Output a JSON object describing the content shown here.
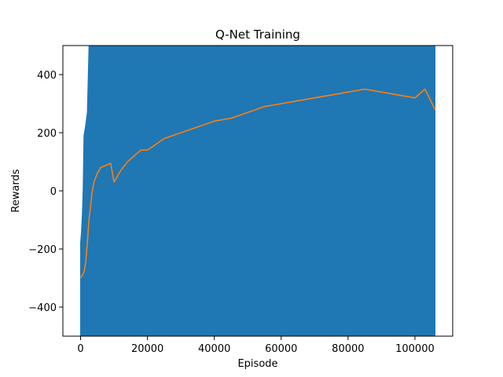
{
  "chart_data": {
    "type": "line",
    "title": "Q-Net Training",
    "xlabel": "Episode",
    "ylabel": "Rewards",
    "xlim": [
      -5300,
      111300
    ],
    "ylim": [
      -500,
      500
    ],
    "x_ticks": [
      0,
      20000,
      40000,
      60000,
      80000,
      100000
    ],
    "x_tick_labels": [
      "0",
      "20000",
      "40000",
      "60000",
      "80000",
      "100000"
    ],
    "y_ticks": [
      -400,
      -200,
      0,
      200,
      400
    ],
    "y_tick_labels": [
      "−400",
      "−200",
      "0",
      "200",
      "400"
    ],
    "grid": false,
    "legend": "none",
    "colors": {
      "raw": "#1f77b4",
      "smoothed": "#ff7f0e"
    },
    "series": [
      {
        "role": "raw",
        "x": [
          0,
          250,
          500,
          750,
          1000,
          1500,
          2000,
          2500,
          3000,
          5000,
          20000,
          40000,
          60000,
          80000,
          100000,
          106000
        ],
        "upper": [
          -180,
          -140,
          -80,
          0,
          190,
          225,
          270,
          500,
          500,
          500,
          500,
          500,
          500,
          500,
          500,
          500
        ],
        "lower": [
          -500,
          -500,
          -500,
          -500,
          -500,
          -500,
          -500,
          -500,
          -500,
          -500,
          -500,
          -500,
          -500,
          -500,
          -500,
          -500
        ]
      },
      {
        "role": "smoothed",
        "x": [
          0,
          500,
          1000,
          1500,
          2000,
          2500,
          3000,
          3500,
          4000,
          5000,
          6000,
          7000,
          8000,
          9000,
          10000,
          12000,
          14000,
          16000,
          18000,
          20000,
          25000,
          30000,
          35000,
          40000,
          45000,
          50000,
          55000,
          60000,
          65000,
          70000,
          75000,
          80000,
          85000,
          90000,
          95000,
          100000,
          103000,
          106000
        ],
        "y": [
          -300,
          -290,
          -280,
          -250,
          -180,
          -100,
          -50,
          0,
          30,
          60,
          80,
          85,
          90,
          95,
          30,
          70,
          100,
          120,
          140,
          140,
          180,
          200,
          220,
          240,
          250,
          270,
          290,
          300,
          310,
          320,
          330,
          340,
          350,
          340,
          330,
          320,
          350,
          280
        ]
      }
    ]
  }
}
